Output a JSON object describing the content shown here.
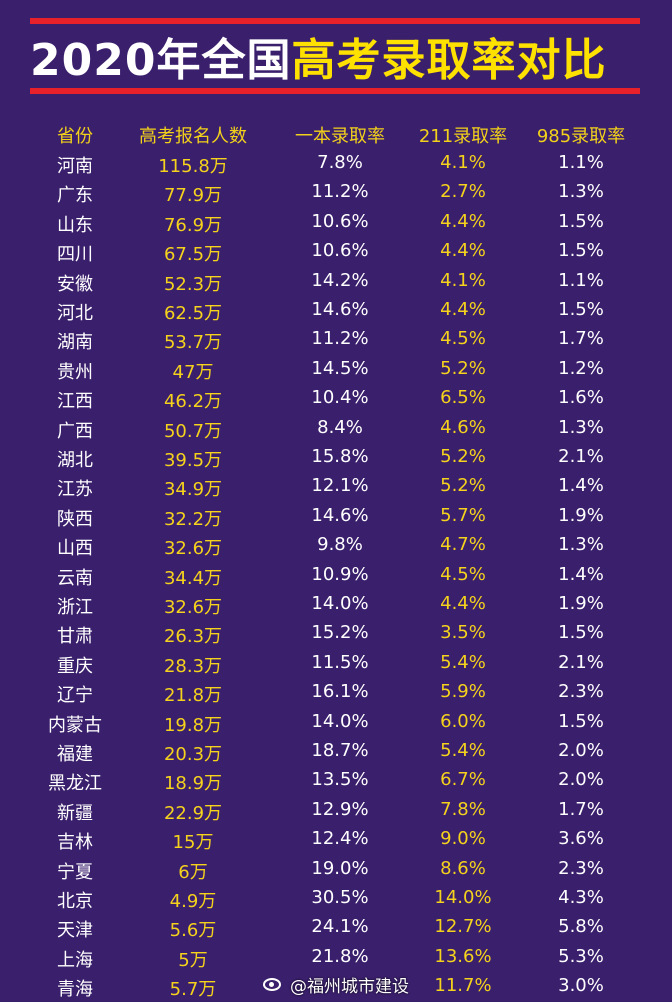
{
  "title": {
    "part1": "2020年全国",
    "part2": "高考录取率对比"
  },
  "colors": {
    "background": "#3a1f6c",
    "rule": "#e8202a",
    "accent_yellow": "#ffe100",
    "text_white": "#ffffff"
  },
  "table": {
    "headers": [
      "省份",
      "高考报名人数",
      "一本录取率",
      "211录取率",
      "985录取率"
    ],
    "rows": [
      [
        "河南",
        "115.8万",
        "7.8%",
        "4.1%",
        "1.1%"
      ],
      [
        "广东",
        "77.9万",
        "11.2%",
        "2.7%",
        "1.3%"
      ],
      [
        "山东",
        "76.9万",
        "10.6%",
        "4.4%",
        "1.5%"
      ],
      [
        "四川",
        "67.5万",
        "10.6%",
        "4.4%",
        "1.5%"
      ],
      [
        "安徽",
        "52.3万",
        "14.2%",
        "4.1%",
        "1.1%"
      ],
      [
        "河北",
        "62.5万",
        "14.6%",
        "4.4%",
        "1.5%"
      ],
      [
        "湖南",
        "53.7万",
        "11.2%",
        "4.5%",
        "1.7%"
      ],
      [
        "贵州",
        "47万",
        "14.5%",
        "5.2%",
        "1.2%"
      ],
      [
        "江西",
        "46.2万",
        "10.4%",
        "6.5%",
        "1.6%"
      ],
      [
        "广西",
        "50.7万",
        "8.4%",
        "4.6%",
        "1.3%"
      ],
      [
        "湖北",
        "39.5万",
        "15.8%",
        "5.2%",
        "2.1%"
      ],
      [
        "江苏",
        "34.9万",
        "12.1%",
        "5.2%",
        "1.4%"
      ],
      [
        "陕西",
        "32.2万",
        "14.6%",
        "5.7%",
        "1.9%"
      ],
      [
        "山西",
        "32.6万",
        "9.8%",
        "4.7%",
        "1.3%"
      ],
      [
        "云南",
        "34.4万",
        "10.9%",
        "4.5%",
        "1.4%"
      ],
      [
        "浙江",
        "32.6万",
        "14.0%",
        "4.4%",
        "1.9%"
      ],
      [
        "甘肃",
        "26.3万",
        "15.2%",
        "3.5%",
        "1.5%"
      ],
      [
        "重庆",
        "28.3万",
        "11.5%",
        "5.4%",
        "2.1%"
      ],
      [
        "辽宁",
        "21.8万",
        "16.1%",
        "5.9%",
        "2.3%"
      ],
      [
        "内蒙古",
        "19.8万",
        "14.0%",
        "6.0%",
        "1.5%"
      ],
      [
        "福建",
        "20.3万",
        "18.7%",
        "5.4%",
        "2.0%"
      ],
      [
        "黑龙江",
        "18.9万",
        "13.5%",
        "6.7%",
        "2.0%"
      ],
      [
        "新疆",
        "22.9万",
        "12.9%",
        "7.8%",
        "1.7%"
      ],
      [
        "吉林",
        "15万",
        "12.4%",
        "9.0%",
        "3.6%"
      ],
      [
        "宁夏",
        "6万",
        "19.0%",
        "8.6%",
        "2.3%"
      ],
      [
        "北京",
        "4.9万",
        "30.5%",
        "14.0%",
        "4.3%"
      ],
      [
        "天津",
        "5.6万",
        "24.1%",
        "12.7%",
        "5.8%"
      ],
      [
        "上海",
        "5万",
        "21.8%",
        "13.6%",
        "5.3%"
      ],
      [
        "青海",
        "5.7万",
        "",
        "11.7%",
        "3.0%"
      ]
    ]
  },
  "watermark": {
    "icon": "weibo-icon",
    "text": "@福州城市建设"
  }
}
